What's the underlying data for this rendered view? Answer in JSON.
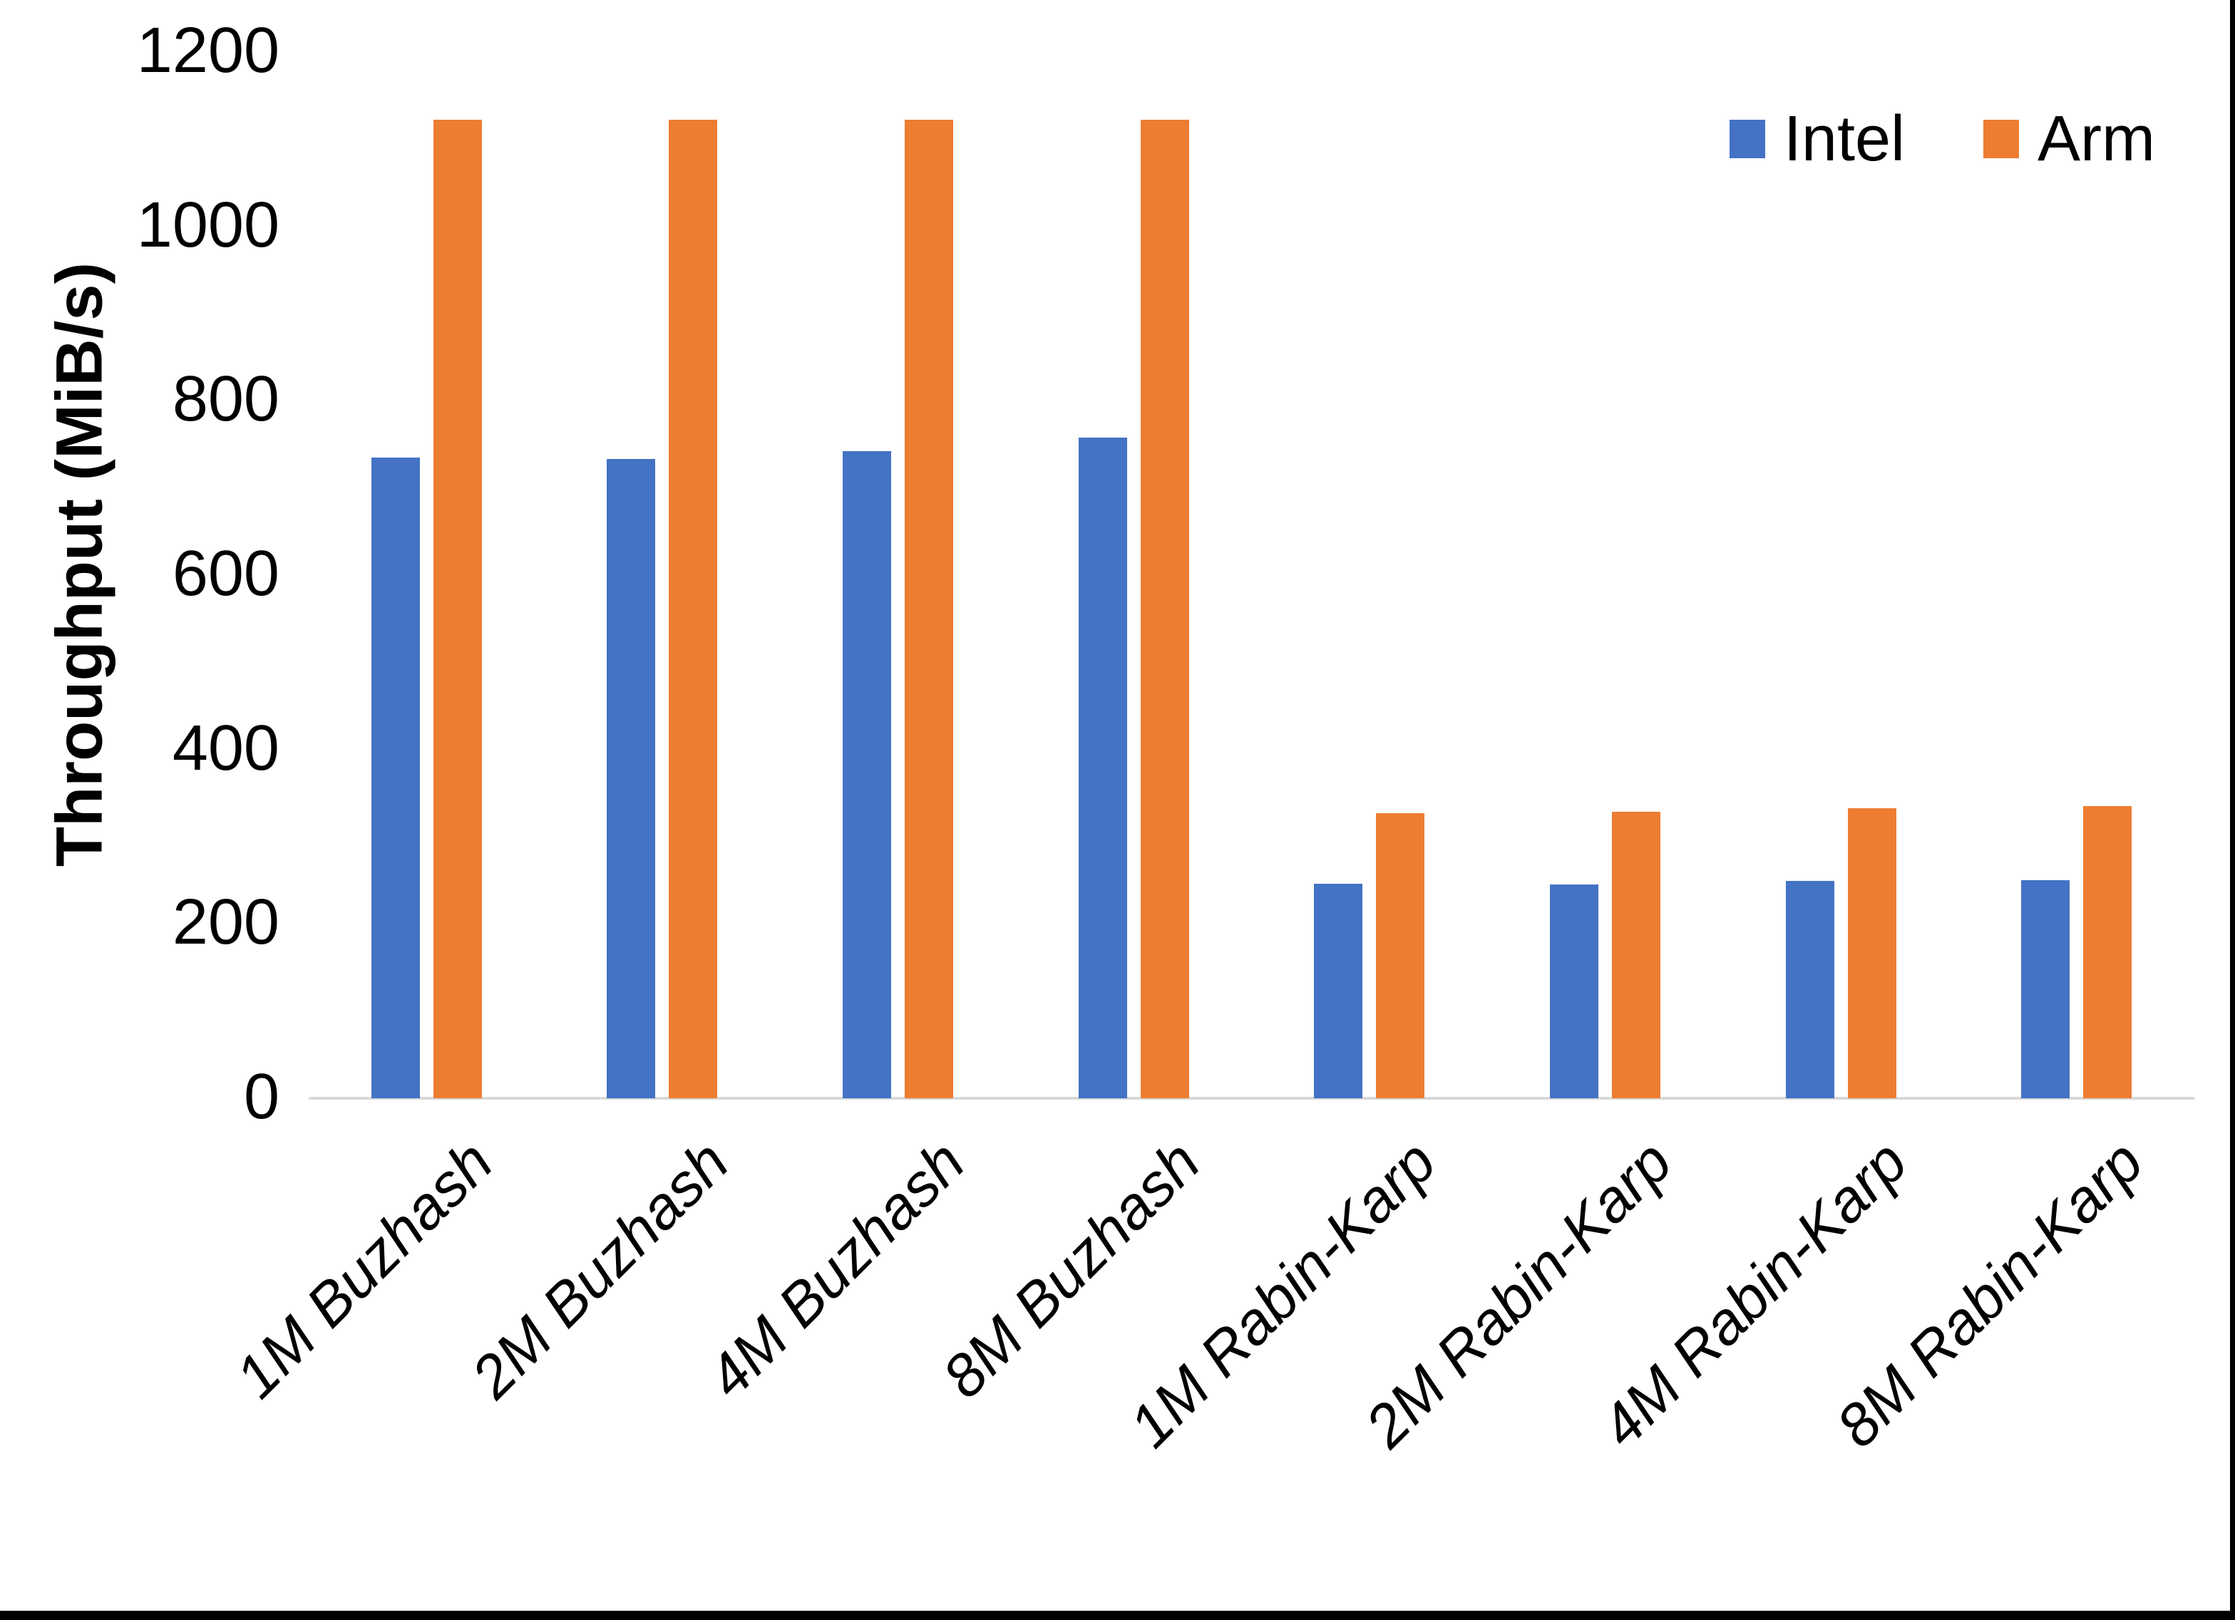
{
  "chart_data": {
    "type": "bar",
    "title": "",
    "xlabel": "",
    "ylabel": "Throughput (MiB/s)",
    "ylim": [
      0,
      1200
    ],
    "yticks": [
      0,
      200,
      400,
      600,
      800,
      1000,
      1200
    ],
    "grid": false,
    "legend_position": "top-right",
    "categories": [
      "1M Buzhash",
      "2M Buzhash",
      "4M Buzhash",
      "8M Buzhash",
      "1M Rabin-Karp",
      "2M Rabin-Karp",
      "4M Rabin-Karp",
      "8M Rabin-Karp"
    ],
    "series": [
      {
        "name": "Intel",
        "color": "#4472C4",
        "values": [
          735,
          733,
          742,
          758,
          246,
          245,
          249,
          250
        ]
      },
      {
        "name": "Arm",
        "color": "#ED7D31",
        "values": [
          1122,
          1122,
          1122,
          1122,
          327,
          329,
          333,
          335
        ]
      }
    ]
  },
  "colors": {
    "axis_line": "#D9D9D9",
    "text": "#000000",
    "background": "#FFFFFF",
    "screen_edge": "#000000"
  }
}
